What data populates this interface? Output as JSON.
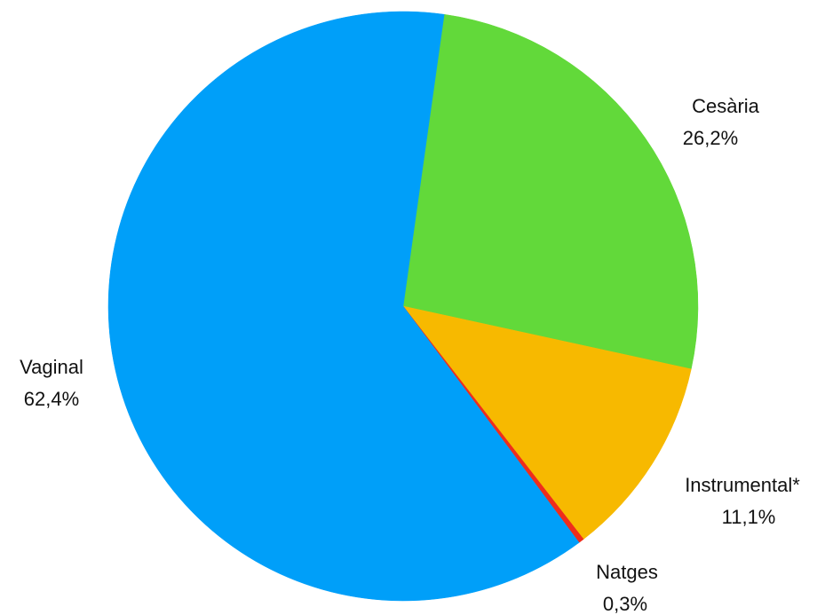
{
  "chart_data": {
    "type": "pie",
    "slices": [
      {
        "name": "Cesària",
        "value": 26.2,
        "label": "26,2%",
        "color": "#62d93a"
      },
      {
        "name": "Instrumental*",
        "value": 11.1,
        "label": "11,1%",
        "color": "#f7b900"
      },
      {
        "name": "Natges",
        "value": 0.3,
        "label": "0,3%",
        "color": "#ef2d1c"
      },
      {
        "name": "Vaginal",
        "value": 62.4,
        "label": "62,4%",
        "color": "#009ff9"
      }
    ],
    "start_angle_deg": 8,
    "direction": "clockwise"
  }
}
